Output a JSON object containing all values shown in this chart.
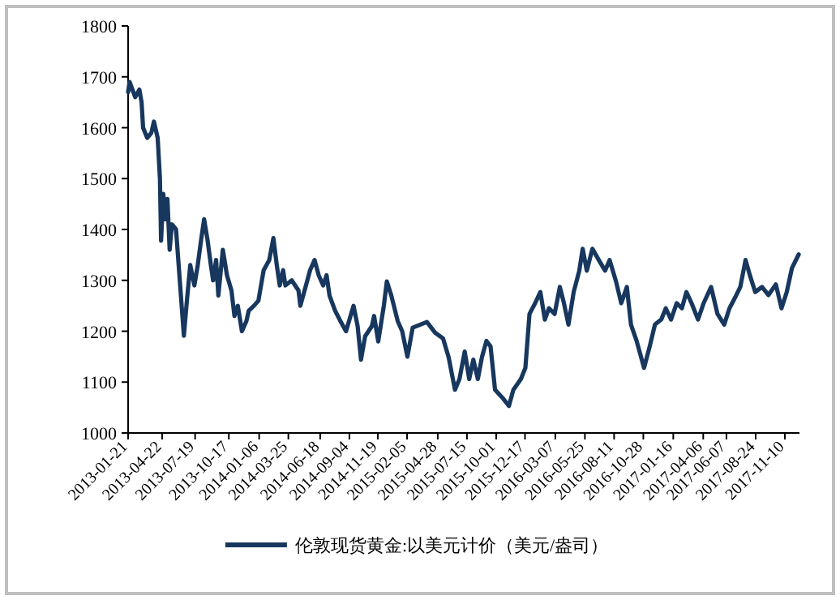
{
  "chart_data": {
    "type": "line",
    "legend": "bottom",
    "x": [
      "2013-01-21",
      "2013-01-25",
      "2013-02-09",
      "2013-02-20",
      "2013-02-26",
      "2013-03-02",
      "2013-03-13",
      "2013-03-24",
      "2013-03-31",
      "2013-04-10",
      "2013-04-16",
      "2013-04-19",
      "2013-04-25",
      "2013-05-01",
      "2013-05-06",
      "2013-05-12",
      "2013-05-18",
      "2013-05-29",
      "2013-06-04",
      "2013-06-11",
      "2013-06-19",
      "2013-06-27",
      "2013-07-06",
      "2013-07-17",
      "2013-07-26",
      "2013-08-04",
      "2013-08-12",
      "2013-08-21",
      "2013-08-30",
      "2013-09-05",
      "2013-09-13",
      "2013-09-19",
      "2013-10-01",
      "2013-10-12",
      "2013-10-24",
      "2013-11-01",
      "2013-11-10",
      "2013-11-21",
      "2013-12-03",
      "2013-12-09",
      "2013-12-23",
      "2014-01-04",
      "2014-01-18",
      "2014-02-02",
      "2014-02-13",
      "2014-02-22",
      "2014-03-02",
      "2014-03-11",
      "2014-03-17",
      "2014-04-03",
      "2014-04-21",
      "2014-04-26",
      "2014-05-11",
      "2014-05-22",
      "2014-06-03",
      "2014-06-14",
      "2014-06-26",
      "2014-07-05",
      "2014-07-13",
      "2014-07-28",
      "2014-08-11",
      "2014-08-26",
      "2014-09-15",
      "2014-09-26",
      "2014-10-05",
      "2014-10-16",
      "2014-11-03",
      "2014-11-09",
      "2014-11-20",
      "2014-12-05",
      "2014-12-13",
      "2014-12-25",
      "2015-01-11",
      "2015-01-23",
      "2015-02-06",
      "2015-02-20",
      "2015-03-30",
      "2015-04-21",
      "2015-05-12",
      "2015-05-27",
      "2015-06-13",
      "2015-06-25",
      "2015-07-09",
      "2015-07-21",
      "2015-08-01",
      "2015-08-13",
      "2015-08-24",
      "2015-09-05",
      "2015-09-16",
      "2015-09-28",
      "2015-10-18",
      "2015-11-04",
      "2015-11-16",
      "2015-12-06",
      "2015-12-18",
      "2015-12-29",
      "2016-01-13",
      "2016-01-27",
      "2016-02-08",
      "2016-02-19",
      "2016-03-05",
      "2016-03-19",
      "2016-03-30",
      "2016-04-11",
      "2016-04-25",
      "2016-05-10",
      "2016-05-19",
      "2016-05-30",
      "2016-06-14",
      "2016-07-01",
      "2016-07-18",
      "2016-07-30",
      "2016-08-16",
      "2016-08-30",
      "2016-09-14",
      "2016-09-25",
      "2016-10-10",
      "2016-10-30",
      "2016-11-14",
      "2016-11-28",
      "2016-12-15",
      "2016-12-27",
      "2017-01-10",
      "2017-01-25",
      "2017-02-08",
      "2017-02-20",
      "2017-03-06",
      "2017-03-23",
      "2017-04-07",
      "2017-04-27",
      "2017-05-14",
      "2017-06-01",
      "2017-06-15",
      "2017-06-30",
      "2017-07-14",
      "2017-07-28",
      "2017-08-09",
      "2017-08-23",
      "2017-09-10",
      "2017-09-27",
      "2017-10-17",
      "2017-11-01",
      "2017-11-15",
      "2017-11-29",
      "2017-12-17"
    ],
    "series": [
      {
        "name": "伦敦现货黄金:以美元计价（美元/盎司）",
        "color": "#17375e",
        "values": [
          1670,
          1690,
          1660,
          1675,
          1650,
          1600,
          1580,
          1590,
          1612,
          1580,
          1500,
          1378,
          1470,
          1420,
          1460,
          1360,
          1410,
          1400,
          1340,
          1270,
          1191,
          1260,
          1330,
          1290,
          1330,
          1380,
          1420,
          1380,
          1330,
          1300,
          1340,
          1270,
          1360,
          1310,
          1280,
          1230,
          1250,
          1200,
          1220,
          1240,
          1250,
          1260,
          1320,
          1340,
          1383,
          1330,
          1290,
          1320,
          1290,
          1300,
          1280,
          1250,
          1290,
          1320,
          1340,
          1310,
          1290,
          1310,
          1270,
          1240,
          1220,
          1200,
          1250,
          1210,
          1144,
          1190,
          1210,
          1230,
          1180,
          1250,
          1298,
          1270,
          1220,
          1200,
          1150,
          1207,
          1218,
          1197,
          1186,
          1149,
          1085,
          1106,
          1160,
          1106,
          1144,
          1106,
          1149,
          1181,
          1170,
          1085,
          1069,
          1053,
          1085,
          1106,
          1128,
          1234,
          1255,
          1277,
          1223,
          1245,
          1234,
          1287,
          1255,
          1213,
          1277,
          1319,
          1362,
          1319,
          1362,
          1340,
          1319,
          1340,
          1298,
          1255,
          1287,
          1213,
          1181,
          1128,
          1170,
          1213,
          1223,
          1245,
          1223,
          1255,
          1245,
          1277,
          1255,
          1223,
          1255,
          1287,
          1234,
          1213,
          1245,
          1266,
          1287,
          1340,
          1309,
          1277,
          1287,
          1271,
          1292,
          1245,
          1277,
          1324,
          1351
        ]
      }
    ],
    "xlim": [
      "2013-01-21",
      "2017-12-19"
    ],
    "xticks": [
      "2013-01-21",
      "2013-04-22",
      "2013-07-19",
      "2013-10-17",
      "2014-01-06",
      "2014-03-25",
      "2014-06-18",
      "2014-09-04",
      "2014-11-19",
      "2015-02-05",
      "2015-04-28",
      "2015-07-15",
      "2015-10-01",
      "2015-12-17",
      "2016-03-07",
      "2016-05-25",
      "2016-08-11",
      "2016-10-28",
      "2017-01-16",
      "2017-04-06",
      "2017-06-07",
      "2017-08-24",
      "2017-11-10"
    ],
    "ylim": [
      1000,
      1800
    ],
    "yticks": [
      1000,
      1100,
      1200,
      1300,
      1400,
      1500,
      1600,
      1700,
      1800
    ]
  }
}
